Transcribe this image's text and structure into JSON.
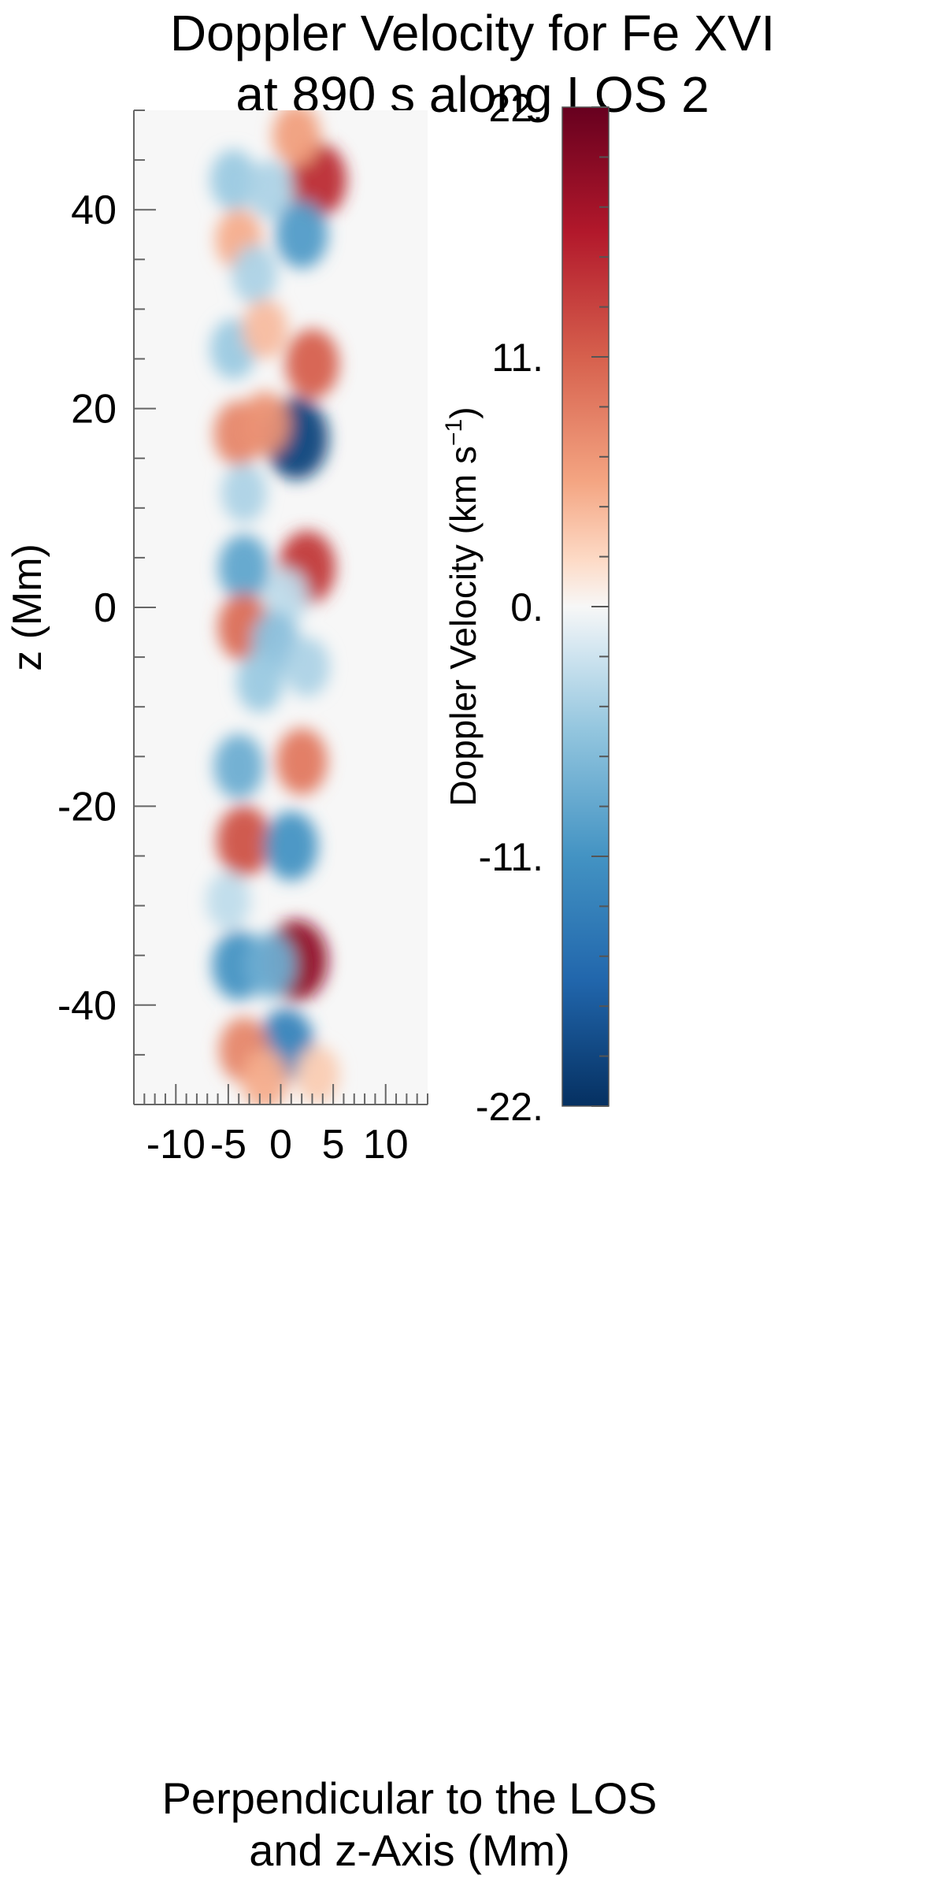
{
  "chart_data": [
    {
      "type": "heatmap",
      "title": [
        "Doppler Velocity for Fe XVI",
        "at 890 s along LOS 2"
      ],
      "xlabel": [
        "Perpendicular to the LOS",
        "and z-Axis (Mm)"
      ],
      "ylabel": "z (Mm)",
      "xlim": [
        -14,
        14
      ],
      "ylim": [
        -50,
        50
      ],
      "xticks": [
        -10,
        -5,
        0,
        5,
        10
      ],
      "xtick_labels": [
        "-10",
        "-5",
        "0",
        "5",
        "10"
      ],
      "yticks": [
        -40,
        -20,
        0,
        20,
        40
      ],
      "ytick_labels": [
        "-40",
        "-20",
        "0",
        "20",
        "40"
      ],
      "background_value": 0,
      "blobs": [
        {
          "x": 3.5,
          "z": 43,
          "value": 15
        },
        {
          "x": 1.5,
          "z": 47.5,
          "value": 6
        },
        {
          "x": -4.5,
          "z": 43,
          "value": -5
        },
        {
          "x": -1.0,
          "z": 42,
          "value": -4
        },
        {
          "x": 2.0,
          "z": 37.5,
          "value": -10
        },
        {
          "x": -4.0,
          "z": 37,
          "value": 5
        },
        {
          "x": -2.5,
          "z": 33.5,
          "value": -4
        },
        {
          "x": 3.0,
          "z": 24.5,
          "value": 11
        },
        {
          "x": -4.5,
          "z": 26,
          "value": -5
        },
        {
          "x": -1.5,
          "z": 28,
          "value": 4
        },
        {
          "x": 1.5,
          "z": 17,
          "value": -20
        },
        {
          "x": -4.0,
          "z": 17.5,
          "value": 8
        },
        {
          "x": -1.5,
          "z": 18.5,
          "value": 7
        },
        {
          "x": -3.5,
          "z": 11.5,
          "value": -4
        },
        {
          "x": 2.5,
          "z": 4,
          "value": 14
        },
        {
          "x": -3.5,
          "z": 4,
          "value": -9
        },
        {
          "x": 0.5,
          "z": 1,
          "value": -3
        },
        {
          "x": -3.5,
          "z": -2,
          "value": 10
        },
        {
          "x": -0.5,
          "z": -3.5,
          "value": -6
        },
        {
          "x": 2.5,
          "z": -6,
          "value": -4
        },
        {
          "x": -2.0,
          "z": -7.5,
          "value": -5
        },
        {
          "x": 2.0,
          "z": -15.5,
          "value": 9
        },
        {
          "x": -4.0,
          "z": -16,
          "value": -8
        },
        {
          "x": -3.5,
          "z": -23.5,
          "value": 12
        },
        {
          "x": 1.0,
          "z": -24,
          "value": -11
        },
        {
          "x": -5.0,
          "z": -29.5,
          "value": -3
        },
        {
          "x": 1.5,
          "z": -35.5,
          "value": 19
        },
        {
          "x": -4.0,
          "z": -36,
          "value": -11
        },
        {
          "x": -1.0,
          "z": -36,
          "value": -8
        },
        {
          "x": 0.5,
          "z": -44,
          "value": -13
        },
        {
          "x": -3.5,
          "z": -44.5,
          "value": 8
        },
        {
          "x": -1.5,
          "z": -47.5,
          "value": 5
        },
        {
          "x": 3.5,
          "z": -47,
          "value": 3
        }
      ]
    },
    {
      "type": "colorbar",
      "label": "Doppler Velocity (km s",
      "label_superscript": "−1",
      "label_close": ")",
      "range": [
        -22,
        22
      ],
      "ticks": [
        22,
        11,
        0,
        -11,
        -22
      ],
      "tick_labels": [
        "22.",
        "11.",
        "0.",
        "-11.",
        "-22."
      ],
      "colormap": [
        [
          -22,
          "#053061"
        ],
        [
          -16.5,
          "#2166ac"
        ],
        [
          -11,
          "#4393c3"
        ],
        [
          -5.5,
          "#92c5de"
        ],
        [
          -2,
          "#d1e5f0"
        ],
        [
          0,
          "#f7f7f7"
        ],
        [
          2,
          "#fddbc7"
        ],
        [
          5.5,
          "#f4a582"
        ],
        [
          11,
          "#d6604d"
        ],
        [
          16.5,
          "#b2182b"
        ],
        [
          22,
          "#67001f"
        ]
      ]
    }
  ]
}
